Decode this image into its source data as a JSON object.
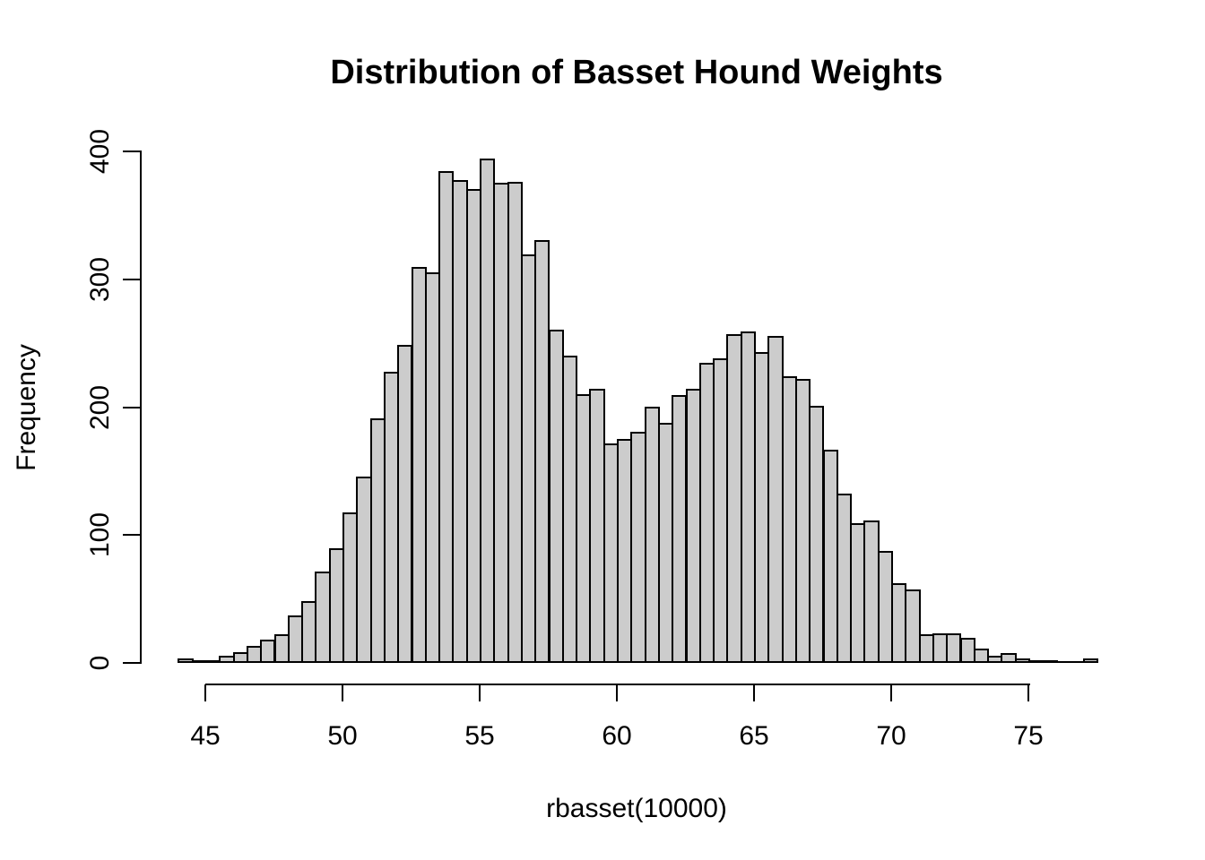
{
  "title": "Distribution of Basset Hound Weights",
  "x_axis": {
    "label": "rbasset(10000)",
    "tick_labels": [
      "45",
      "50",
      "55",
      "60",
      "65",
      "70",
      "75"
    ],
    "tick_values": [
      45,
      50,
      55,
      60,
      65,
      70,
      75
    ]
  },
  "y_axis": {
    "label": "Frequency",
    "tick_labels": [
      "0",
      "100",
      "200",
      "300",
      "400"
    ],
    "tick_values": [
      0,
      100,
      200,
      300,
      400
    ]
  },
  "chart_data": {
    "type": "bar",
    "subtype": "histogram",
    "title": "Distribution of Basset Hound Weights",
    "xlabel": "rbasset(10000)",
    "ylabel": "Frequency",
    "xlim": [
      44,
      77.5
    ],
    "ylim": [
      0,
      400
    ],
    "grid": "off",
    "legend": "none",
    "bin_start": 44,
    "bin_width": 0.5,
    "counts": [
      2,
      1,
      1,
      4,
      7,
      12,
      17,
      21,
      36,
      47,
      70,
      88,
      116,
      144,
      190,
      226,
      247,
      308,
      304,
      383,
      376,
      369,
      393,
      374,
      375,
      318,
      329,
      259,
      239,
      209,
      213,
      170,
      174,
      179,
      199,
      186,
      208,
      213,
      233,
      237,
      256,
      258,
      242,
      254,
      223,
      221,
      200,
      165,
      131,
      108,
      110,
      86,
      61,
      56,
      21,
      22,
      22,
      18,
      10,
      4,
      6,
      2,
      1,
      1,
      0,
      0,
      2
    ],
    "bar_fill": "#cccccc",
    "bar_border": "#000000",
    "axis_color": "#000000"
  }
}
